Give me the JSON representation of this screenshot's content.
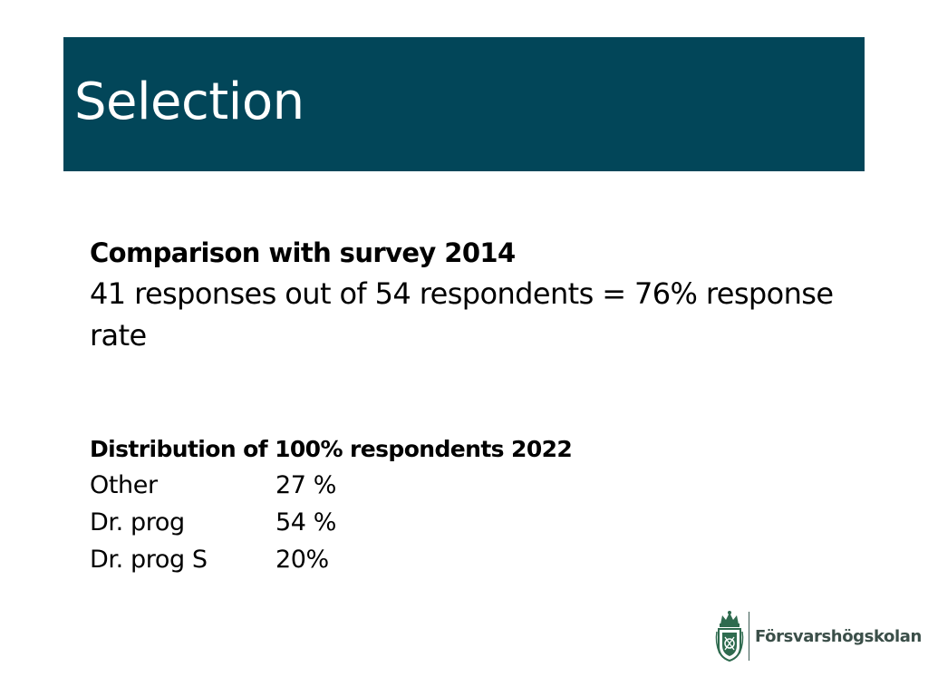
{
  "slide": {
    "title": "Selection",
    "section1": {
      "heading": "Comparison with survey 2014",
      "text": "41 responses out of 54 respondents = 76% response rate"
    },
    "section2": {
      "heading": "Distribution of 100% respondents 2022",
      "rows": [
        {
          "label": "Other",
          "value": "27 %"
        },
        {
          "label": "Dr. prog",
          "value": "54 %"
        },
        {
          "label": "Dr. prog S",
          "value": "20%"
        }
      ]
    }
  },
  "logo": {
    "name": "Försvarshögskolan",
    "icon": "crest-icon"
  },
  "colors": {
    "title_bar": "#024659",
    "logo_green": "#2f6b4f"
  }
}
